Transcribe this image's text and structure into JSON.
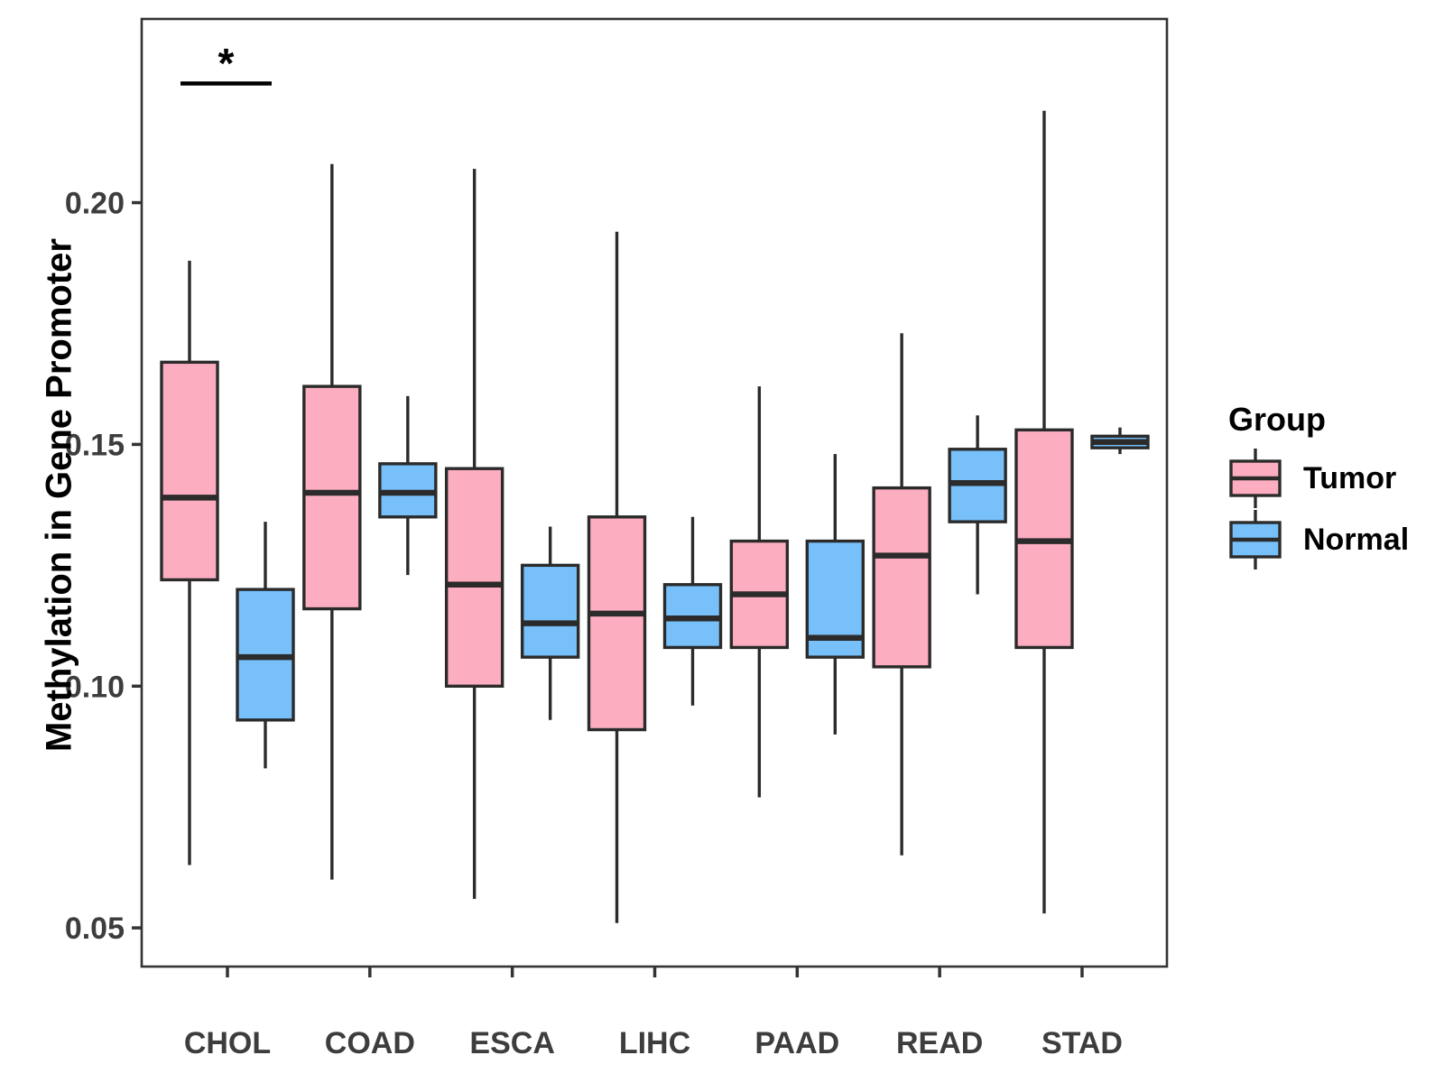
{
  "chart_data": {
    "type": "boxplot",
    "title": "",
    "xlabel": "",
    "ylabel": "Methylation in Gene Promoter",
    "categories": [
      "CHOL",
      "COAD",
      "ESCA",
      "LIHC",
      "PAAD",
      "READ",
      "STAD"
    ],
    "y_ticks": [
      {
        "label": "0.05",
        "value": 0.05
      },
      {
        "label": "0.10",
        "value": 0.1
      },
      {
        "label": "0.15",
        "value": 0.15
      },
      {
        "label": "0.20",
        "value": 0.2
      }
    ],
    "ylim": [
      0.042,
      0.238
    ],
    "grid": false,
    "legend": {
      "title": "Group",
      "position": "right"
    },
    "groups": [
      {
        "name": "Tumor",
        "color": "#FCAEC0",
        "stats": [
          {
            "min": 0.063,
            "q1": 0.122,
            "med": 0.139,
            "q3": 0.167,
            "max": 0.188
          },
          {
            "min": 0.06,
            "q1": 0.116,
            "med": 0.14,
            "q3": 0.162,
            "max": 0.208
          },
          {
            "min": 0.056,
            "q1": 0.1,
            "med": 0.121,
            "q3": 0.145,
            "max": 0.207
          },
          {
            "min": 0.051,
            "q1": 0.091,
            "med": 0.115,
            "q3": 0.135,
            "max": 0.194
          },
          {
            "min": 0.077,
            "q1": 0.108,
            "med": 0.119,
            "q3": 0.13,
            "max": 0.162
          },
          {
            "min": 0.065,
            "q1": 0.104,
            "med": 0.127,
            "q3": 0.141,
            "max": 0.173
          },
          {
            "min": 0.053,
            "q1": 0.108,
            "med": 0.13,
            "q3": 0.153,
            "max": 0.219
          }
        ]
      },
      {
        "name": "Normal",
        "color": "#77C0FA",
        "stats": [
          {
            "min": 0.083,
            "q1": 0.093,
            "med": 0.106,
            "q3": 0.12,
            "max": 0.134
          },
          {
            "min": 0.123,
            "q1": 0.135,
            "med": 0.14,
            "q3": 0.146,
            "max": 0.16
          },
          {
            "min": 0.093,
            "q1": 0.106,
            "med": 0.113,
            "q3": 0.125,
            "max": 0.133
          },
          {
            "min": 0.096,
            "q1": 0.108,
            "med": 0.114,
            "q3": 0.121,
            "max": 0.135
          },
          {
            "min": 0.09,
            "q1": 0.106,
            "med": 0.11,
            "q3": 0.13,
            "max": 0.148
          },
          {
            "min": 0.119,
            "q1": 0.134,
            "med": 0.142,
            "q3": 0.149,
            "max": 0.156
          },
          {
            "min": 0.148,
            "q1": 0.1493,
            "med": 0.1505,
            "q3": 0.1517,
            "max": 0.1535
          }
        ]
      }
    ],
    "significance": {
      "category": "CHOL",
      "label": "*"
    },
    "style": {
      "box_stroke": "#2B2B2B",
      "axis_stroke": "#333333",
      "tick_text": "#3d3d3d"
    }
  }
}
